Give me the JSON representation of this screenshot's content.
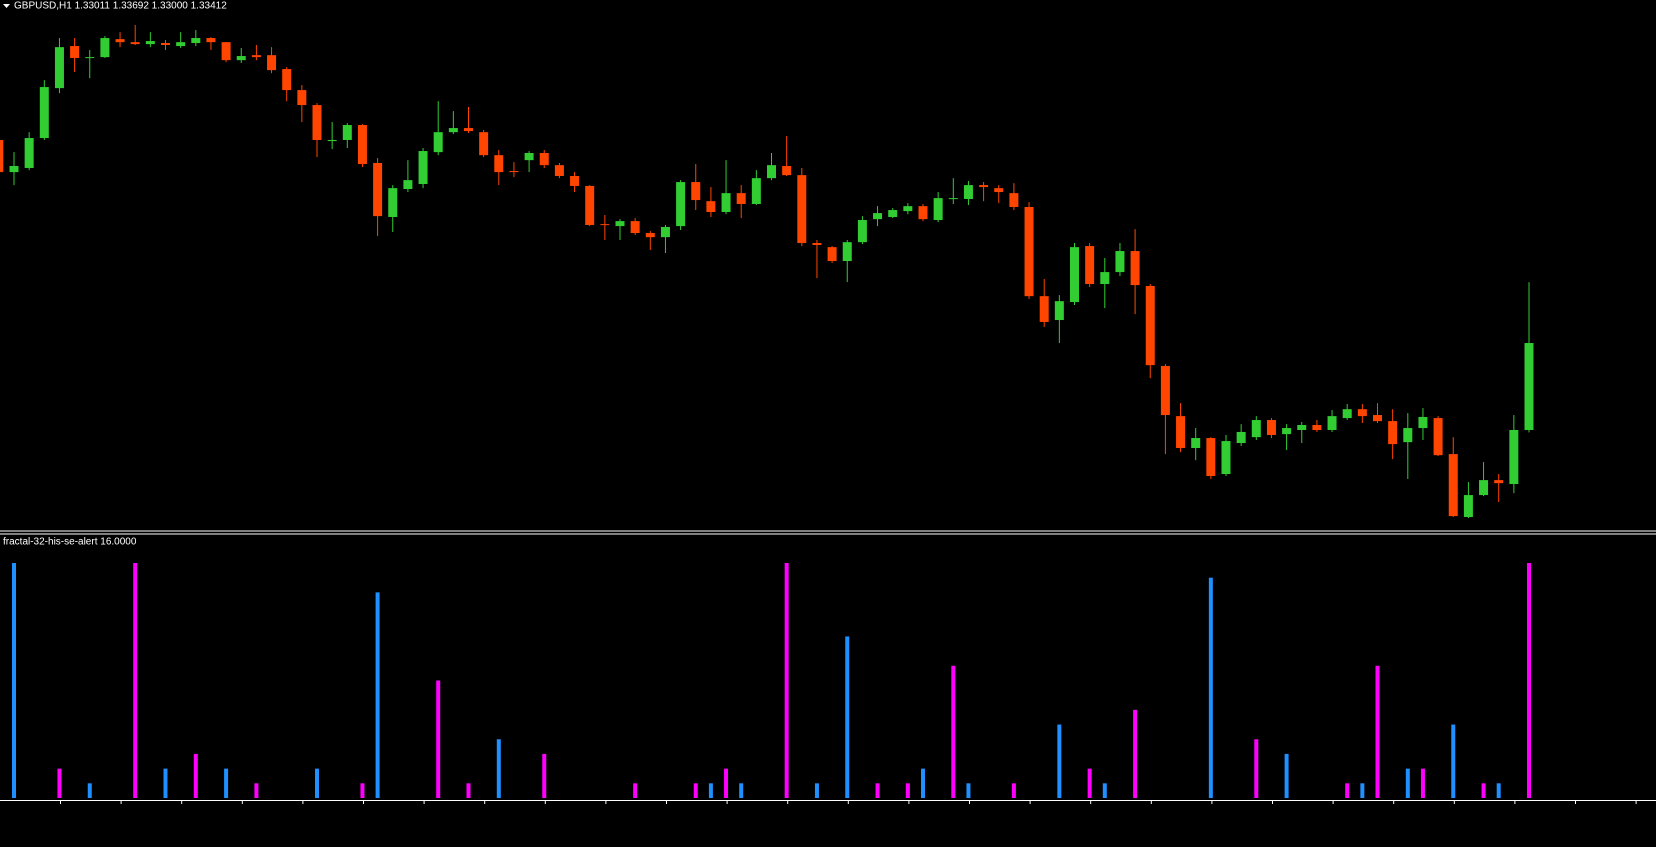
{
  "chart_data": [
    {
      "type": "candlestick",
      "title": "GBPUSD,H1  1.33011 1.33692 1.33000 1.33412",
      "up_color": "#32cd32",
      "down_color": "#ff4500",
      "ylim": [
        1.3255,
        1.34938
      ],
      "open": [
        1.34348,
        1.342,
        1.34219,
        1.34357,
        1.34587,
        1.34781,
        1.34726,
        1.3473,
        1.34813,
        1.34799,
        1.3479,
        1.34795,
        1.34781,
        1.34795,
        1.34818,
        1.34799,
        1.34716,
        1.34739,
        1.34739,
        1.34675,
        1.34578,
        1.34509,
        1.34343,
        1.34348,
        1.34417,
        1.34242,
        1.33993,
        1.34122,
        1.34145,
        1.34292,
        1.34384,
        1.34403,
        1.34384,
        1.34278,
        1.34205,
        1.34255,
        1.34288,
        1.34232,
        1.34182,
        1.34136,
        1.3396,
        1.33951,
        1.33974,
        1.33919,
        1.339,
        1.33951,
        1.34154,
        1.34066,
        1.34016,
        1.34103,
        1.34053,
        1.34172,
        1.34228,
        1.34186,
        1.33873,
        1.33854,
        1.3379,
        1.33877,
        1.33983,
        1.33993,
        1.3402,
        1.34043,
        1.33979,
        1.34076,
        1.34076,
        1.3414,
        1.34126,
        1.34103,
        1.34039,
        1.33628,
        1.33518,
        1.33601,
        1.33859,
        1.33684,
        1.33739,
        1.33836,
        1.33675,
        1.33306,
        1.33075,
        1.32928,
        1.32974,
        1.32808,
        1.32951,
        1.32978,
        1.33057,
        1.32992,
        1.33011,
        1.33034,
        1.33011,
        1.33066,
        1.33107,
        1.3308,
        1.33052,
        1.32955,
        1.3302,
        1.33066,
        1.329,
        1.3261,
        1.32711,
        1.3278,
        1.32762,
        1.33011
      ],
      "high": [
        1.34394,
        1.34292,
        1.34384,
        1.34624,
        1.34818,
        1.34818,
        1.34763,
        1.34827,
        1.34845,
        1.34878,
        1.34845,
        1.34809,
        1.34845,
        1.34855,
        1.34822,
        1.34799,
        1.34772,
        1.34786,
        1.34776,
        1.34684,
        1.34601,
        1.34518,
        1.34431,
        1.34426,
        1.34421,
        1.34265,
        1.3414,
        1.34255,
        1.34311,
        1.34527,
        1.34481,
        1.345,
        1.34394,
        1.34302,
        1.34246,
        1.34297,
        1.34302,
        1.34242,
        1.342,
        1.3414,
        1.34002,
        1.33983,
        1.33988,
        1.33928,
        1.33956,
        1.34163,
        1.34237,
        1.34131,
        1.34255,
        1.3414,
        1.34209,
        1.34288,
        1.34366,
        1.34219,
        1.33887,
        1.33859,
        1.33887,
        1.33997,
        1.34043,
        1.34034,
        1.34057,
        1.34053,
        1.34108,
        1.34172,
        1.34159,
        1.34154,
        1.3414,
        1.34149,
        1.34062,
        1.33707,
        1.33633,
        1.33873,
        1.33873,
        1.33804,
        1.33873,
        1.33937,
        1.33684,
        1.33315,
        1.33135,
        1.3302,
        1.32978,
        1.32988,
        1.33038,
        1.33075,
        1.33066,
        1.33038,
        1.33048,
        1.33057,
        1.33103,
        1.33131,
        1.33131,
        1.33135,
        1.33107,
        1.33089,
        1.33112,
        1.33075,
        1.32978,
        1.32771,
        1.32863,
        1.32808,
        1.3308,
        1.33692
      ],
      "low": [
        1.34186,
        1.3414,
        1.34209,
        1.34348,
        1.34564,
        1.34661,
        1.34633,
        1.34726,
        1.34776,
        1.34786,
        1.34776,
        1.34763,
        1.34772,
        1.34781,
        1.34763,
        1.34707,
        1.34703,
        1.34716,
        1.34656,
        1.34527,
        1.34431,
        1.34269,
        1.34306,
        1.34311,
        1.34223,
        1.33905,
        1.33924,
        1.34108,
        1.34126,
        1.34278,
        1.34375,
        1.3438,
        1.34269,
        1.3414,
        1.34177,
        1.342,
        1.34219,
        1.34172,
        1.34108,
        1.33951,
        1.33887,
        1.33887,
        1.3391,
        1.33841,
        1.33827,
        1.33933,
        1.34025,
        1.33993,
        1.34006,
        1.33988,
        1.34048,
        1.34163,
        1.34182,
        1.33859,
        1.33711,
        1.33781,
        1.33693,
        1.33868,
        1.33951,
        1.33988,
        1.34006,
        1.33974,
        1.3397,
        1.34053,
        1.34048,
        1.34066,
        1.34057,
        1.34025,
        1.33615,
        1.33486,
        1.33412,
        1.33587,
        1.3367,
        1.33573,
        1.33721,
        1.33545,
        1.3325,
        1.329,
        1.32909,
        1.32872,
        1.32785,
        1.32799,
        1.32937,
        1.32965,
        1.32974,
        1.32919,
        1.32951,
        1.33002,
        1.33002,
        1.33057,
        1.33043,
        1.33043,
        1.32877,
        1.32785,
        1.32965,
        1.32891,
        1.3261,
        1.32605,
        1.32706,
        1.32679,
        1.3272,
        1.33
      ],
      "close": [
        1.342,
        1.34228,
        1.34357,
        1.34592,
        1.34776,
        1.34726,
        1.3473,
        1.34818,
        1.34799,
        1.3479,
        1.34804,
        1.34786,
        1.34799,
        1.34818,
        1.34799,
        1.34716,
        1.34735,
        1.3473,
        1.3467,
        1.34578,
        1.34509,
        1.34348,
        1.34348,
        1.34417,
        1.34237,
        1.33997,
        1.34126,
        1.34163,
        1.34297,
        1.34384,
        1.34403,
        1.34389,
        1.34278,
        1.342,
        1.342,
        1.34288,
        1.34232,
        1.34182,
        1.34136,
        1.33956,
        1.33956,
        1.33974,
        1.33919,
        1.339,
        1.33947,
        1.34154,
        1.34071,
        1.34016,
        1.34103,
        1.34053,
        1.34172,
        1.34232,
        1.34186,
        1.33873,
        1.33864,
        1.3379,
        1.33877,
        1.33979,
        1.34011,
        1.34025,
        1.34043,
        1.33983,
        1.3408,
        1.3408,
        1.3414,
        1.34131,
        1.34108,
        1.34039,
        1.33628,
        1.33509,
        1.33605,
        1.33854,
        1.33684,
        1.33739,
        1.33836,
        1.33679,
        1.3331,
        1.3308,
        1.32928,
        1.32974,
        1.32799,
        1.3296,
        1.33002,
        1.33057,
        1.32988,
        1.3302,
        1.33034,
        1.33011,
        1.33075,
        1.33107,
        1.33075,
        1.33052,
        1.32946,
        1.3302,
        1.33071,
        1.32895,
        1.32614,
        1.32711,
        1.3278,
        1.32766,
        1.33011,
        1.33412
      ]
    },
    {
      "type": "bar",
      "title": "fractal-32-his-se-alert 16.0000",
      "ylim": [
        0,
        16
      ],
      "series": [
        {
          "color": "#1e90ff",
          "values": [
            null,
            16,
            null,
            null,
            null,
            null,
            1,
            null,
            null,
            null,
            null,
            2,
            null,
            null,
            null,
            2,
            null,
            null,
            null,
            null,
            null,
            2,
            null,
            null,
            null,
            14,
            null,
            null,
            null,
            null,
            null,
            null,
            null,
            4,
            null,
            null,
            null,
            null,
            null,
            null,
            null,
            null,
            null,
            null,
            null,
            null,
            null,
            1,
            null,
            1,
            null,
            null,
            null,
            null,
            1,
            null,
            11,
            null,
            null,
            null,
            null,
            2,
            null,
            null,
            1,
            null,
            null,
            null,
            null,
            null,
            5,
            null,
            null,
            1,
            null,
            null,
            null,
            null,
            null,
            null,
            15,
            null,
            null,
            null,
            null,
            3,
            null,
            null,
            null,
            null,
            1,
            null,
            null,
            2,
            null,
            null,
            5,
            null,
            null,
            1,
            null,
            null
          ]
        },
        {
          "color": "#ff00ff",
          "values": [
            null,
            null,
            null,
            null,
            2,
            null,
            null,
            null,
            null,
            16,
            null,
            null,
            null,
            3,
            null,
            null,
            null,
            1,
            null,
            null,
            null,
            null,
            null,
            null,
            1,
            null,
            null,
            null,
            null,
            8,
            null,
            1,
            null,
            null,
            null,
            null,
            3,
            null,
            null,
            null,
            null,
            null,
            1,
            null,
            null,
            null,
            1,
            null,
            2,
            null,
            null,
            null,
            16,
            null,
            null,
            null,
            null,
            null,
            1,
            null,
            1,
            null,
            null,
            9,
            null,
            null,
            null,
            1,
            null,
            null,
            null,
            null,
            2,
            null,
            null,
            6,
            null,
            null,
            null,
            null,
            null,
            null,
            null,
            4,
            null,
            null,
            null,
            null,
            null,
            1,
            null,
            9,
            null,
            null,
            2,
            null,
            null,
            null,
            1,
            null,
            null,
            16
          ]
        }
      ]
    }
  ]
}
